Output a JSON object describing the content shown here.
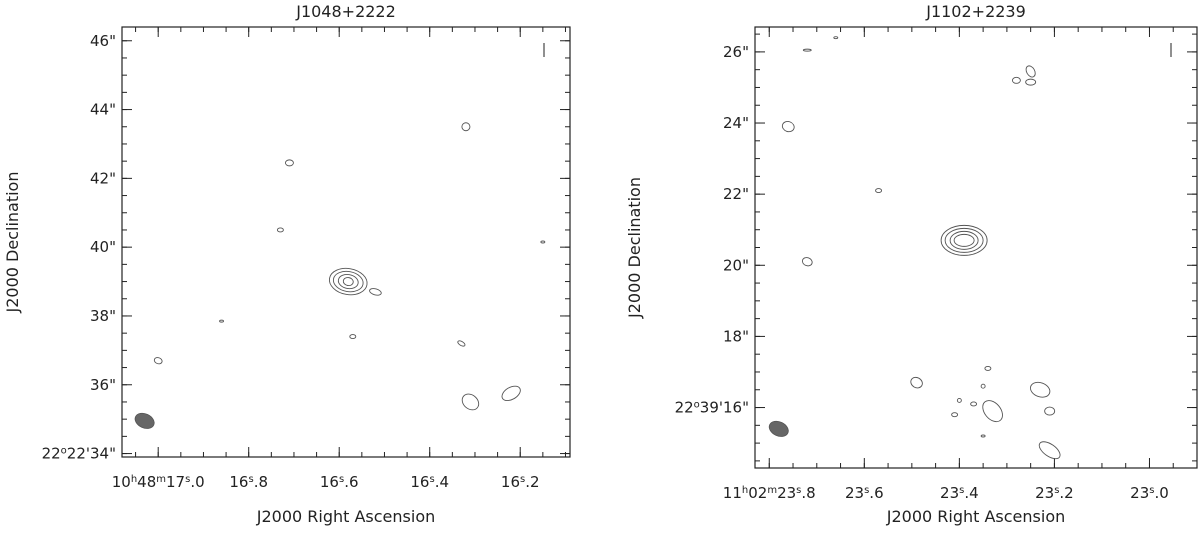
{
  "chart_data": [
    {
      "type": "contour",
      "title": "J1048+2222",
      "xlabel": "J2000 Right Ascension",
      "ylabel": "J2000 Declination",
      "x_unit": "RA seconds (10h48m)",
      "y_unit": "Dec arcsec (+22°22')",
      "xlim": [
        17.08,
        16.09
      ],
      "ylim": [
        33.9,
        46.4
      ],
      "x_ticks": [
        {
          "value": 17.0,
          "label": "10h48m17s.0"
        },
        {
          "value": 16.8,
          "label": "16s.8"
        },
        {
          "value": 16.6,
          "label": "16s.6"
        },
        {
          "value": 16.4,
          "label": "16s.4"
        },
        {
          "value": 16.2,
          "label": "16s.2"
        }
      ],
      "y_ticks": [
        {
          "value": 34,
          "label": "22°22'34\""
        },
        {
          "value": 36,
          "label": "36\""
        },
        {
          "value": 38,
          "label": "38\""
        },
        {
          "value": 40,
          "label": "40\""
        },
        {
          "value": 42,
          "label": "42\""
        },
        {
          "value": 44,
          "label": "44\""
        },
        {
          "value": 46,
          "label": "46\""
        }
      ],
      "source_peak": {
        "ra_s": 16.58,
        "dec_as": 39.0
      },
      "beam": {
        "ra_s": 17.03,
        "dec_as": 34.95
      },
      "grid": false
    },
    {
      "type": "contour",
      "title": "J1102+2239",
      "xlabel": "J2000 Right Ascension",
      "ylabel": "J2000 Declination",
      "x_unit": "RA seconds (11h02m)",
      "y_unit": "Dec arcsec (+22°39')",
      "xlim": [
        23.83,
        22.9
      ],
      "ylim": [
        14.3,
        26.7
      ],
      "x_ticks": [
        {
          "value": 23.8,
          "label": "11h02m23s.8"
        },
        {
          "value": 23.6,
          "label": "23s.6"
        },
        {
          "value": 23.4,
          "label": "23s.4"
        },
        {
          "value": 23.2,
          "label": "23s.2"
        },
        {
          "value": 23.0,
          "label": "23s.0"
        }
      ],
      "y_ticks": [
        {
          "value": 16,
          "label": "22°39'16\""
        },
        {
          "value": 18,
          "label": "18\""
        },
        {
          "value": 20,
          "label": "20\""
        },
        {
          "value": 22,
          "label": "22\""
        },
        {
          "value": 24,
          "label": "24\""
        },
        {
          "value": 26,
          "label": "26\""
        }
      ],
      "source_peak": {
        "ra_s": 23.39,
        "dec_as": 20.7
      },
      "beam": {
        "ra_s": 23.78,
        "dec_as": 15.4
      },
      "grid": false
    }
  ]
}
